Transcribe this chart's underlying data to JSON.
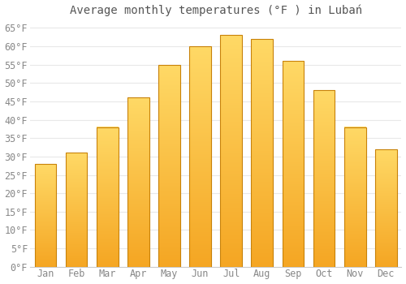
{
  "title": "Average monthly temperatures (°F ) in Lubań",
  "months": [
    "Jan",
    "Feb",
    "Mar",
    "Apr",
    "May",
    "Jun",
    "Jul",
    "Aug",
    "Sep",
    "Oct",
    "Nov",
    "Dec"
  ],
  "values": [
    28,
    31,
    38,
    46,
    55,
    60,
    63,
    62,
    56,
    48,
    38,
    32
  ],
  "bar_color_top": "#FFD966",
  "bar_color_bottom": "#F5A623",
  "bar_edge_color": "#C8820A",
  "background_color": "#FFFFFF",
  "grid_color": "#E8E8E8",
  "text_color": "#888888",
  "title_color": "#555555",
  "ylim": [
    0,
    67
  ],
  "yticks": [
    0,
    5,
    10,
    15,
    20,
    25,
    30,
    35,
    40,
    45,
    50,
    55,
    60,
    65
  ],
  "title_fontsize": 10,
  "tick_fontsize": 8.5,
  "bar_width": 0.7
}
